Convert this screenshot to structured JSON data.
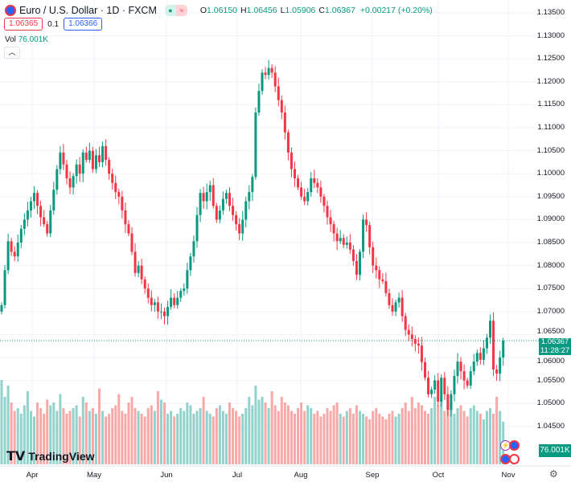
{
  "header": {
    "symbol": "Euro / U.S. Dollar · 1D · FXCM",
    "open_label": "O",
    "open": "1.06150",
    "high_label": "H",
    "high": "1.06456",
    "low_label": "L",
    "low": "1.05906",
    "close_label": "C",
    "close": "1.06367",
    "change": "+0.00217 (+0.20%)",
    "status_symbol": "≈"
  },
  "quote": {
    "sell": "1.06365",
    "spread": "0.1",
    "buy": "1.06366"
  },
  "volume": {
    "label": "Vol",
    "value": "76.001K",
    "axis_tag": "76.001K"
  },
  "current": {
    "price": "1.06367",
    "countdown": "11:28:27"
  },
  "brand": "TradingView",
  "colors": {
    "up": "#089981",
    "down": "#f23645",
    "vol_up": "#92d2cc",
    "vol_down": "#f7a9a7",
    "grid": "#f0f3fa"
  },
  "price_axis": [
    "1.13500",
    "1.13000",
    "1.12500",
    "1.12000",
    "1.11500",
    "1.11000",
    "1.10500",
    "1.10000",
    "1.09500",
    "1.09000",
    "1.08500",
    "1.08000",
    "1.07500",
    "1.07000",
    "1.06500",
    "1.06000",
    "1.05500",
    "1.05000",
    "1.04500"
  ],
  "time_axis": [
    "Apr",
    "May",
    "Jun",
    "Jul",
    "Aug",
    "Sep",
    "Oct",
    "Nov"
  ],
  "chart_data": {
    "type": "candlestick",
    "first_open": 1.07,
    "ylim": [
      1.0425,
      1.1375
    ],
    "closes": [
      1.0714,
      1.079,
      1.0853,
      1.083,
      1.082,
      1.085,
      1.088,
      1.09,
      1.092,
      1.094,
      1.0958,
      1.093,
      1.0905,
      1.089,
      1.087,
      1.092,
      1.0965,
      1.101,
      1.1046,
      1.102,
      1.099,
      1.097,
      1.0995,
      1.102,
      1.1,
      1.1046,
      1.103,
      1.105,
      1.101,
      1.104,
      1.1025,
      1.106,
      1.103,
      1.1,
      1.098,
      1.096,
      1.095,
      1.092,
      1.089,
      1.087,
      1.083,
      1.0784,
      1.08,
      1.077,
      1.075,
      1.073,
      1.0714,
      1.072,
      1.07,
      1.07,
      1.069,
      1.071,
      1.073,
      1.0714,
      1.073,
      1.0745,
      1.075,
      1.079,
      1.082,
      1.0853,
      1.091,
      1.0958,
      1.094,
      1.096,
      1.0975,
      1.093,
      1.09,
      1.092,
      1.0945,
      1.0958,
      1.093,
      1.091,
      1.089,
      1.087,
      1.09,
      1.094,
      1.096,
      1.0993,
      1.1133,
      1.118,
      1.122,
      1.1215,
      1.123,
      1.122,
      1.119,
      1.116,
      1.1133,
      1.109,
      1.1046,
      1.101,
      1.099,
      1.097,
      1.095,
      1.094,
      1.096,
      1.099,
      1.098,
      1.097,
      1.095,
      1.093,
      1.0905,
      1.089,
      1.087,
      1.0853,
      1.086,
      1.0845,
      1.085,
      1.0835,
      1.081,
      1.078,
      1.083,
      1.09,
      1.0888,
      1.084,
      1.08,
      1.079,
      1.077,
      1.0766,
      1.074,
      1.0714,
      1.07,
      1.072,
      1.073,
      1.069,
      1.066,
      1.065,
      1.064,
      1.063,
      1.0626,
      1.059,
      1.0556,
      1.052,
      1.053,
      1.055,
      1.0504,
      1.0556,
      1.052,
      1.0486,
      1.052,
      1.056,
      1.0591,
      1.057,
      1.055,
      1.0539,
      1.057,
      1.0591,
      1.061,
      1.0595,
      1.062,
      1.0643,
      1.068,
      1.0574,
      1.0565,
      1.06,
      1.06367
    ],
    "volumes_k": [
      150,
      120,
      140,
      110,
      95,
      100,
      90,
      105,
      130,
      95,
      85,
      110,
      100,
      90,
      115,
      105,
      110,
      95,
      125,
      100,
      90,
      95,
      100,
      105,
      85,
      120,
      110,
      95,
      100,
      90,
      135,
      95,
      85,
      90,
      100,
      105,
      125,
      95,
      90,
      110,
      120,
      100,
      95,
      90,
      85,
      100,
      105,
      95,
      130,
      115,
      110,
      90,
      95,
      85,
      90,
      100,
      95,
      110,
      105,
      90,
      95,
      100,
      120,
      95,
      90,
      85,
      100,
      105,
      95,
      90,
      110,
      100,
      95,
      85,
      90,
      100,
      120,
      105,
      140,
      115,
      120,
      110,
      100,
      130,
      105,
      95,
      120,
      110,
      105,
      95,
      90,
      100,
      110,
      95,
      105,
      100,
      90,
      95,
      85,
      90,
      100,
      95,
      105,
      110,
      90,
      85,
      95,
      100,
      90,
      105,
      95,
      90,
      85,
      80,
      95,
      100,
      90,
      85,
      80,
      90,
      95,
      85,
      90,
      100,
      110,
      95,
      120,
      100,
      110,
      105,
      95,
      90,
      100,
      120,
      105,
      115,
      95,
      100,
      110,
      90,
      100,
      105,
      95,
      85,
      100,
      105,
      95,
      90,
      80,
      95,
      100,
      90,
      120,
      95,
      76.001
    ]
  }
}
